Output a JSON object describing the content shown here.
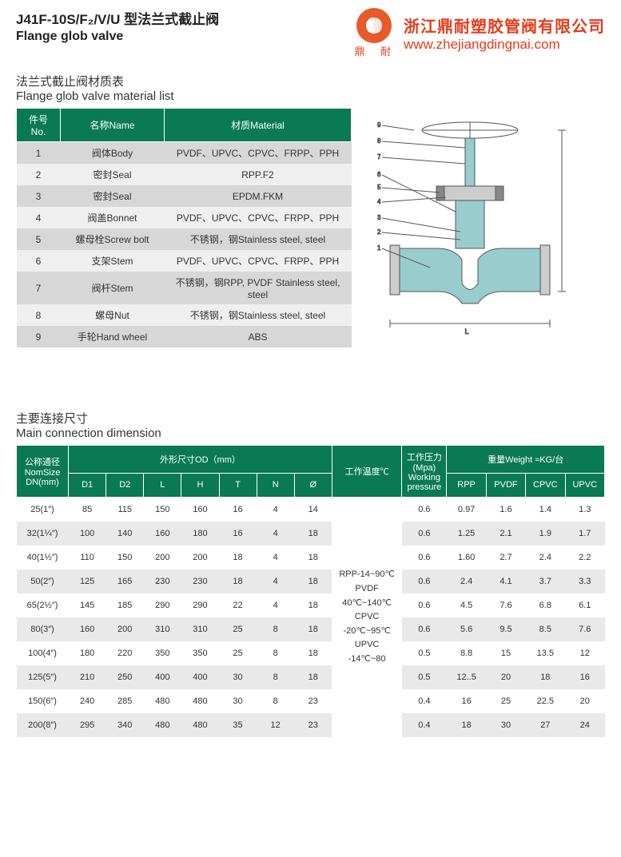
{
  "header": {
    "title_cn": "J41F-10S/F₂/V/U 型法兰式截止阀",
    "title_en": "Flange glob valve",
    "company_cn": "浙江鼎耐塑胶管阀有限公司",
    "company_url": "www.zhejiangdingnai.com",
    "logo_sub": "鼎   耐",
    "logo_color": "#e85a2a",
    "text_color": "#e63b1a"
  },
  "material_section": {
    "title_cn": "法兰式截止阀材质表",
    "title_en": "Flange glob valve material list",
    "header_bg": "#0a7a54",
    "row_odd_bg": "#d7d7d7",
    "row_even_bg": "#efefef",
    "columns": [
      "件号No.",
      "名称Name",
      "材质Material"
    ],
    "rows": [
      [
        "1",
        "阀体Body",
        "PVDF、UPVC、CPVC、FRPP、PPH"
      ],
      [
        "2",
        "密封Seal",
        "RPP.F2"
      ],
      [
        "3",
        "密封Seal",
        "EPDM.FKM"
      ],
      [
        "4",
        "阀盖Bonnet",
        "PVDF、UPVC、CPVC、FRPP、PPH"
      ],
      [
        "5",
        "螺母栓Screw bolt",
        "不锈钢，钢Stainless steel, steel"
      ],
      [
        "6",
        "支架Stem",
        "PVDF、UPVC、CPVC、FRPP、PPH"
      ],
      [
        "7",
        "阀杆Stem",
        "不锈钢，钢RPP, PVDF Stainless steel, steel"
      ],
      [
        "8",
        "螺母Nut",
        "不锈钢，钢Stainless steel, steel"
      ],
      [
        "9",
        "手轮Hand wheel",
        "ABS"
      ]
    ]
  },
  "dimension_section": {
    "title_cn": "主要连接尺寸",
    "title_en": "Main connection dimension",
    "header_bg": "#0a7a54",
    "group_headers": {
      "nomsize": "公称通径\nNomSize\nDN(mm)",
      "od": "外形尺寸OD（mm）",
      "temp": "工作温度℃",
      "pressure": "工作压力(Mpa)\nWorking pressure",
      "weight": "重量Weight ≈KG/台"
    },
    "sub_headers_od": [
      "D1",
      "D2",
      "L",
      "H",
      "T",
      "N",
      "Ø"
    ],
    "sub_headers_weight": [
      "RPP",
      "PVDF",
      "CPVC",
      "UPVC"
    ],
    "temp_text": "RPP-14~90℃\nPVDF\n40℃~140℃\nCPVC\n-20℃~95℃\nUPVC\n-14℃~80",
    "rows": [
      {
        "size": "25(1″)",
        "D1": "85",
        "D2": "115",
        "L": "150",
        "H": "160",
        "T": "16",
        "N": "4",
        "O": "14",
        "P": "0.6",
        "RPP": "0.97",
        "PVDF": "1.6",
        "CPVC": "1.4",
        "UPVC": "1.3"
      },
      {
        "size": "32(1¼″)",
        "D1": "100",
        "D2": "140",
        "L": "160",
        "H": "180",
        "T": "16",
        "N": "4",
        "O": "18",
        "P": "0.6",
        "RPP": "1.25",
        "PVDF": "2.1",
        "CPVC": "1.9",
        "UPVC": "1.7"
      },
      {
        "size": "40(1½″)",
        "D1": "110",
        "D2": "150",
        "L": "200",
        "H": "200",
        "T": "18",
        "N": "4",
        "O": "18",
        "P": "0.6",
        "RPP": "1.60",
        "PVDF": "2.7",
        "CPVC": "2.4",
        "UPVC": "2.2"
      },
      {
        "size": "50(2″)",
        "D1": "125",
        "D2": "165",
        "L": "230",
        "H": "230",
        "T": "18",
        "N": "4",
        "O": "18",
        "P": "0.6",
        "RPP": "2.4",
        "PVDF": "4.1",
        "CPVC": "3.7",
        "UPVC": "3.3"
      },
      {
        "size": "65(2½″)",
        "D1": "145",
        "D2": "185",
        "L": "290",
        "H": "290",
        "T": "22",
        "N": "4",
        "O": "18",
        "P": "0.6",
        "RPP": "4.5",
        "PVDF": "7.6",
        "CPVC": "6.8",
        "UPVC": "6.1"
      },
      {
        "size": "80(3″)",
        "D1": "160",
        "D2": "200",
        "L": "310",
        "H": "310",
        "T": "25",
        "N": "8",
        "O": "18",
        "P": "0.6",
        "RPP": "5.6",
        "PVDF": "9.5",
        "CPVC": "8.5",
        "UPVC": "7.6"
      },
      {
        "size": "100(4″)",
        "D1": "180",
        "D2": "220",
        "L": "350",
        "H": "350",
        "T": "25",
        "N": "8",
        "O": "18",
        "P": "0.5",
        "RPP": "8.8",
        "PVDF": "15",
        "CPVC": "13.5",
        "UPVC": "12"
      },
      {
        "size": "125(5″)",
        "D1": "210",
        "D2": "250",
        "L": "400",
        "H": "400",
        "T": "30",
        "N": "8",
        "O": "18",
        "P": "0.5",
        "RPP": "12..5",
        "PVDF": "20",
        "CPVC": "18",
        "UPVC": "16"
      },
      {
        "size": "150(6″)",
        "D1": "240",
        "D2": "285",
        "L": "480",
        "H": "480",
        "T": "30",
        "N": "8",
        "O": "23",
        "P": "0.4",
        "RPP": "16",
        "PVDF": "25",
        "CPVC": "22.5",
        "UPVC": "20"
      },
      {
        "size": "200(8″)",
        "D1": "295",
        "D2": "340",
        "L": "480",
        "H": "480",
        "T": "35",
        "N": "12",
        "O": "23",
        "P": "0.4",
        "RPP": "18",
        "PVDF": "30",
        "CPVC": "27",
        "UPVC": "24"
      }
    ]
  }
}
